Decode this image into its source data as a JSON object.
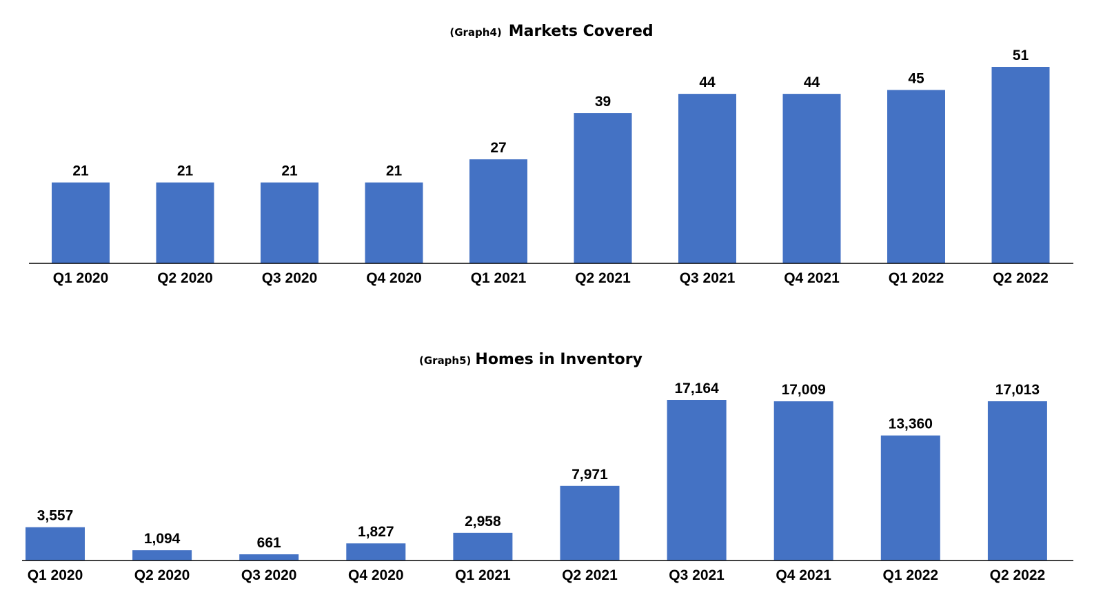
{
  "chart_data": [
    {
      "type": "bar",
      "title_prefix": "(Graph4)",
      "title": "Markets Covered",
      "categories": [
        "Q1 2020",
        "Q2 2020",
        "Q3 2020",
        "Q4 2020",
        "Q1 2021",
        "Q2 2021",
        "Q3 2021",
        "Q4 2021",
        "Q1 2022",
        "Q2 2022"
      ],
      "values": [
        21,
        21,
        21,
        21,
        27,
        39,
        44,
        44,
        45,
        51
      ],
      "data_labels": [
        "21",
        "21",
        "21",
        "21",
        "27",
        "39",
        "44",
        "44",
        "45",
        "51"
      ],
      "xlabel": "",
      "ylabel": "",
      "ylim": [
        0,
        51
      ],
      "grid": false,
      "legend": "none",
      "bar_color": "#4472C4"
    },
    {
      "type": "bar",
      "title_prefix": "(Graph5)",
      "title": "Homes in Inventory",
      "categories": [
        "Q1 2020",
        "Q2 2020",
        "Q3 2020",
        "Q4 2020",
        "Q1 2021",
        "Q2 2021",
        "Q3 2021",
        "Q4 2021",
        "Q1 2022",
        "Q2 2022"
      ],
      "values": [
        3557,
        1094,
        661,
        1827,
        2958,
        7971,
        17164,
        17009,
        13360,
        17013
      ],
      "data_labels": [
        "3,557",
        "1,094",
        "661",
        "1,827",
        "2,958",
        "7,971",
        "17,164",
        "17,009",
        "13,360",
        "17,013"
      ],
      "xlabel": "",
      "ylabel": "",
      "ylim": [
        0,
        17164
      ],
      "grid": false,
      "legend": "none",
      "bar_color": "#4472C4"
    }
  ]
}
